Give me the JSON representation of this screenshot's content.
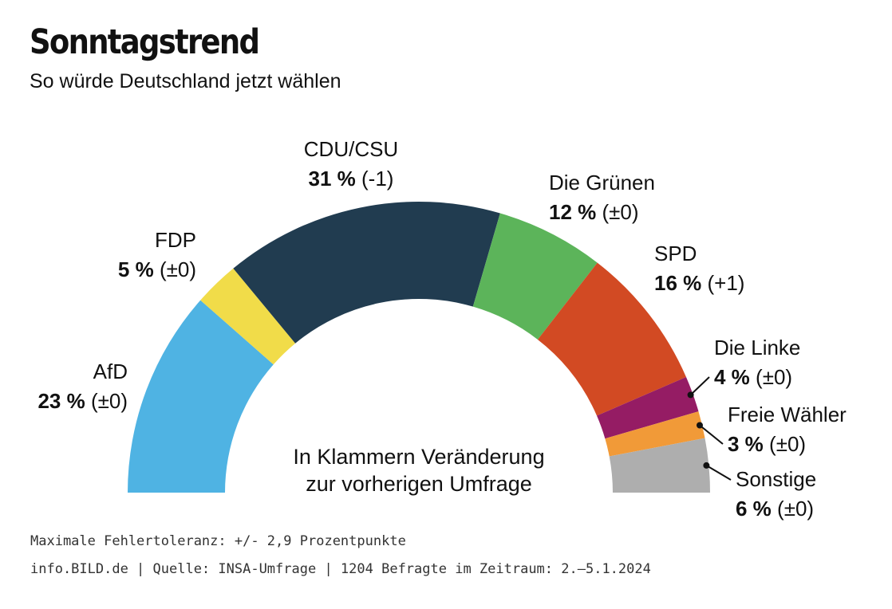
{
  "header": {
    "title": "Sonntagstrend",
    "subtitle": "So würde Deutschland jetzt wählen"
  },
  "center_note": {
    "line1": "In Klammern Veränderung",
    "line2": "zur vorherigen Umfrage"
  },
  "footer": {
    "line1": "Maximale Fehlertoleranz: +/- 2,9 Prozentpunkte",
    "line2": "info.BILD.de | Quelle: INSA-Umfrage | 1204 Befragte im Zeitraum: 2.–5.1.2024"
  },
  "chart_data": {
    "type": "pie",
    "subtype": "semicircle-donut",
    "title": "Sonntagstrend",
    "subtitle": "So würde Deutschland jetzt wählen",
    "unit": "%",
    "slices": [
      {
        "name": "AfD",
        "value": 23,
        "change": "±0",
        "value_label": "23 %",
        "change_label": "(±0)",
        "color": "#4fb3e3"
      },
      {
        "name": "FDP",
        "value": 5,
        "change": "±0",
        "value_label": "5 %",
        "change_label": "(±0)",
        "color": "#f1dc49"
      },
      {
        "name": "CDU/CSU",
        "value": 31,
        "change": "-1",
        "value_label": "31 %",
        "change_label": "(-1)",
        "color": "#213c50"
      },
      {
        "name": "Die Grünen",
        "value": 12,
        "change": "±0",
        "value_label": "12 %",
        "change_label": "(±0)",
        "color": "#5cb45a"
      },
      {
        "name": "SPD",
        "value": 16,
        "change": "+1",
        "value_label": "16 %",
        "change_label": "(+1)",
        "color": "#d24a23"
      },
      {
        "name": "Die Linke",
        "value": 4,
        "change": "±0",
        "value_label": "4 %",
        "change_label": "(±0)",
        "color": "#951c64"
      },
      {
        "name": "Freie Wähler",
        "value": 3,
        "change": "±0",
        "value_label": "3 %",
        "change_label": "(±0)",
        "color": "#f19a38"
      },
      {
        "name": "Sonstige",
        "value": 6,
        "change": "±0",
        "value_label": "6 %",
        "change_label": "(±0)",
        "color": "#aeaeae"
      }
    ]
  }
}
